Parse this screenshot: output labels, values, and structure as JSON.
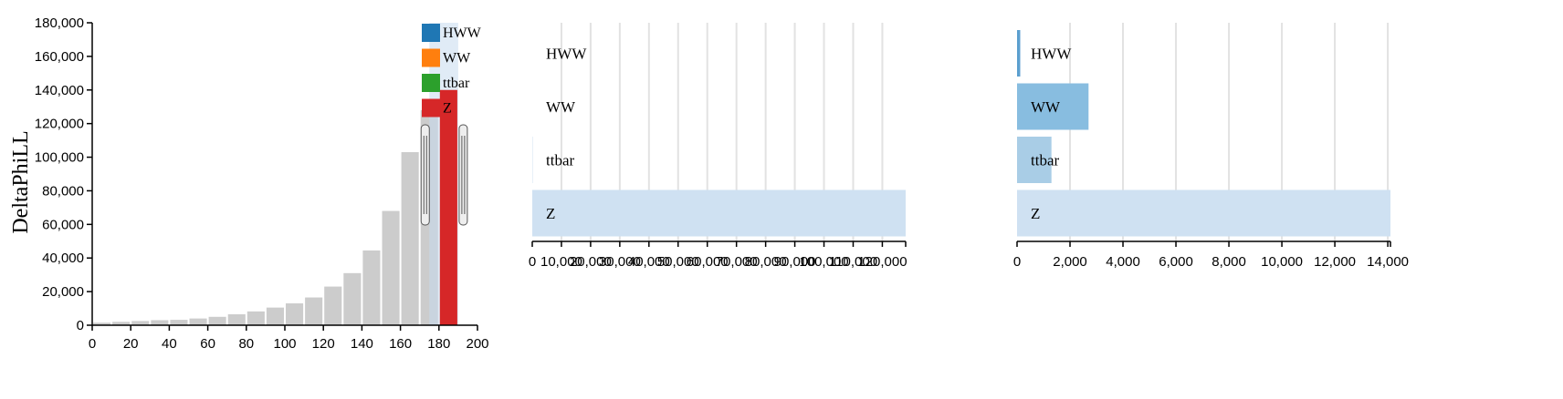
{
  "chart_data": [
    {
      "type": "bar",
      "ylabel": "DeltaPhiLL",
      "xlim": [
        0,
        200
      ],
      "ylim": [
        0,
        180000
      ],
      "xticks": [
        "0",
        "20",
        "40",
        "60",
        "80",
        "100",
        "120",
        "140",
        "160",
        "180",
        "200"
      ],
      "yticks": [
        "0",
        "20,000",
        "40,000",
        "60,000",
        "80,000",
        "100,000",
        "120,000",
        "140,000",
        "160,000",
        "180,000"
      ],
      "bin_width": 10,
      "bins": [
        0,
        10,
        20,
        30,
        40,
        50,
        60,
        70,
        80,
        90,
        100,
        110,
        120,
        130,
        140,
        150,
        160,
        170
      ],
      "values": [
        1500,
        2000,
        2500,
        3000,
        3200,
        4000,
        5000,
        6500,
        8200,
        10500,
        13000,
        16500,
        23000,
        31000,
        44500,
        68000,
        103000,
        128000
      ],
      "brush_range": [
        175,
        190
      ],
      "selected_bar": {
        "x": 180,
        "value": 140000,
        "color": "#d62728"
      },
      "legend": [
        {
          "name": "HWW",
          "color": "#1f77b4"
        },
        {
          "name": "WW",
          "color": "#ff7f0e"
        },
        {
          "name": "ttbar",
          "color": "#2ca02c"
        },
        {
          "name": "Z",
          "color": "#d62728"
        }
      ],
      "legend_placement": "top-right"
    },
    {
      "type": "bar",
      "orientation": "horizontal",
      "categories": [
        "HWW",
        "WW",
        "ttbar",
        "Z"
      ],
      "values": [
        0,
        0,
        150,
        128000
      ],
      "xlim": [
        0,
        128000
      ],
      "xticks": [
        "0",
        "10,000",
        "20,000",
        "30,000",
        "40,000",
        "50,000",
        "60,000",
        "70,000",
        "80,000",
        "90,000",
        "100,000",
        "110,000",
        "120,000"
      ],
      "xtick_values": [
        0,
        10000,
        20000,
        30000,
        40000,
        50000,
        60000,
        70000,
        80000,
        90000,
        100000,
        110000,
        120000
      ],
      "bar_colors": [
        "#cfe1f2",
        "#cfe1f2",
        "#cfe1f2",
        "#cfe1f2"
      ],
      "grid": true
    },
    {
      "type": "bar",
      "orientation": "horizontal",
      "categories": [
        "HWW",
        "WW",
        "ttbar",
        "Z"
      ],
      "values": [
        120,
        2700,
        1300,
        14100
      ],
      "xlim": [
        0,
        14100
      ],
      "xticks": [
        "0",
        "2,000",
        "4,000",
        "6,000",
        "8,000",
        "10,000",
        "12,000",
        "14,000"
      ],
      "xtick_values": [
        0,
        2000,
        4000,
        6000,
        8000,
        10000,
        12000,
        14000
      ],
      "bar_colors": [
        "#5b9fcf",
        "#88bde0",
        "#a9cde6",
        "#cfe1f2"
      ],
      "grid": true
    }
  ]
}
